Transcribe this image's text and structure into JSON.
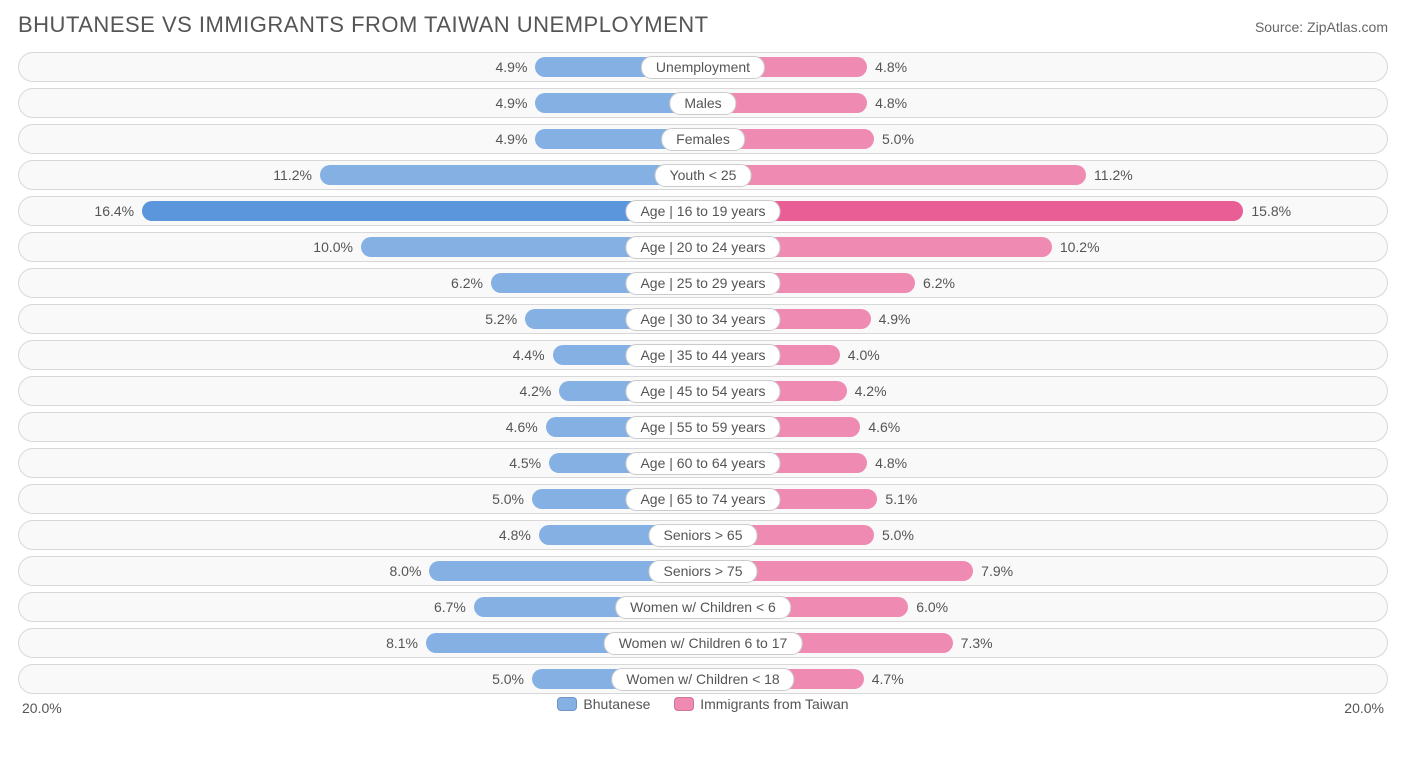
{
  "title": "BHUTANESE VS IMMIGRANTS FROM TAIWAN UNEMPLOYMENT",
  "source_label": "Source: ",
  "source_name": "ZipAtlas.com",
  "chart": {
    "type": "diverging-bar",
    "axis_max": 20.0,
    "axis_left_label": "20.0%",
    "axis_right_label": "20.0%",
    "background_color": "#ffffff",
    "row_bg": "#f9f9f9",
    "row_border": "#d8d8d8",
    "text_color": "#555555",
    "left_series": {
      "name": "Bhutanese",
      "color": "#85b0e4"
    },
    "right_series": {
      "name": "Immigrants from Taiwan",
      "color": "#ef8ab2"
    },
    "highlight_row_index": 4,
    "highlight_left_color": "#5b95db",
    "highlight_right_color": "#ea5e96",
    "label_fontsize": 14,
    "title_fontsize": 22,
    "rows": [
      {
        "category": "Unemployment",
        "left_value": 4.9,
        "left_label": "4.9%",
        "right_value": 4.8,
        "right_label": "4.8%"
      },
      {
        "category": "Males",
        "left_value": 4.9,
        "left_label": "4.9%",
        "right_value": 4.8,
        "right_label": "4.8%"
      },
      {
        "category": "Females",
        "left_value": 4.9,
        "left_label": "4.9%",
        "right_value": 5.0,
        "right_label": "5.0%"
      },
      {
        "category": "Youth < 25",
        "left_value": 11.2,
        "left_label": "11.2%",
        "right_value": 11.2,
        "right_label": "11.2%"
      },
      {
        "category": "Age | 16 to 19 years",
        "left_value": 16.4,
        "left_label": "16.4%",
        "right_value": 15.8,
        "right_label": "15.8%"
      },
      {
        "category": "Age | 20 to 24 years",
        "left_value": 10.0,
        "left_label": "10.0%",
        "right_value": 10.2,
        "right_label": "10.2%"
      },
      {
        "category": "Age | 25 to 29 years",
        "left_value": 6.2,
        "left_label": "6.2%",
        "right_value": 6.2,
        "right_label": "6.2%"
      },
      {
        "category": "Age | 30 to 34 years",
        "left_value": 5.2,
        "left_label": "5.2%",
        "right_value": 4.9,
        "right_label": "4.9%"
      },
      {
        "category": "Age | 35 to 44 years",
        "left_value": 4.4,
        "left_label": "4.4%",
        "right_value": 4.0,
        "right_label": "4.0%"
      },
      {
        "category": "Age | 45 to 54 years",
        "left_value": 4.2,
        "left_label": "4.2%",
        "right_value": 4.2,
        "right_label": "4.2%"
      },
      {
        "category": "Age | 55 to 59 years",
        "left_value": 4.6,
        "left_label": "4.6%",
        "right_value": 4.6,
        "right_label": "4.6%"
      },
      {
        "category": "Age | 60 to 64 years",
        "left_value": 4.5,
        "left_label": "4.5%",
        "right_value": 4.8,
        "right_label": "4.8%"
      },
      {
        "category": "Age | 65 to 74 years",
        "left_value": 5.0,
        "left_label": "5.0%",
        "right_value": 5.1,
        "right_label": "5.1%"
      },
      {
        "category": "Seniors > 65",
        "left_value": 4.8,
        "left_label": "4.8%",
        "right_value": 5.0,
        "right_label": "5.0%"
      },
      {
        "category": "Seniors > 75",
        "left_value": 8.0,
        "left_label": "8.0%",
        "right_value": 7.9,
        "right_label": "7.9%"
      },
      {
        "category": "Women w/ Children < 6",
        "left_value": 6.7,
        "left_label": "6.7%",
        "right_value": 6.0,
        "right_label": "6.0%"
      },
      {
        "category": "Women w/ Children 6 to 17",
        "left_value": 8.1,
        "left_label": "8.1%",
        "right_value": 7.3,
        "right_label": "7.3%"
      },
      {
        "category": "Women w/ Children < 18",
        "left_value": 5.0,
        "left_label": "5.0%",
        "right_value": 4.7,
        "right_label": "4.7%"
      }
    ]
  }
}
